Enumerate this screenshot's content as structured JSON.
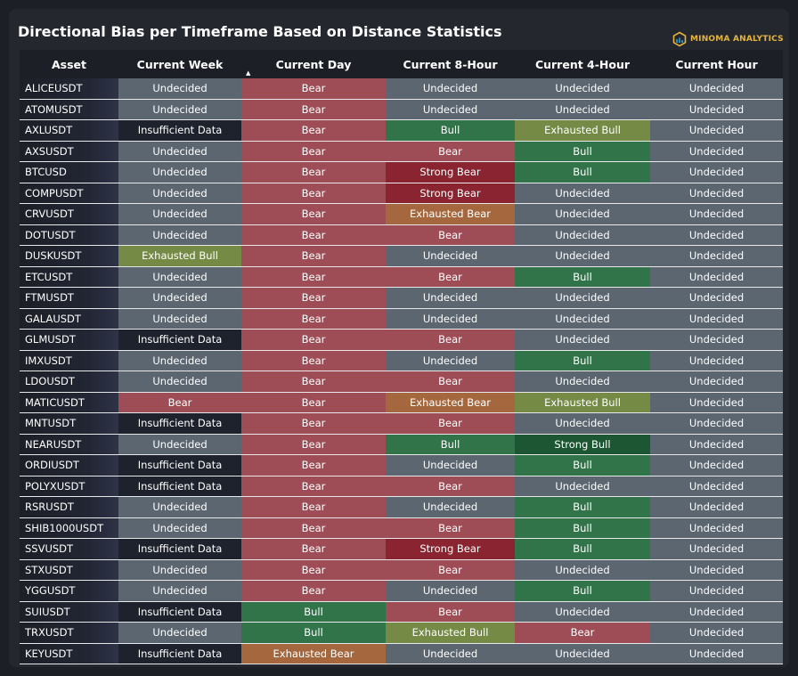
{
  "title": "Directional Bias per Timeframe Based on Distance Statistics",
  "brand": {
    "name": "MINOMA ANALYTICS",
    "icon": "cube-logo-icon",
    "color": "#e4b640"
  },
  "columns": [
    "Asset",
    "Current Week",
    "Current Day",
    "Current 8-Hour",
    "Current 4-Hour",
    "Current Hour"
  ],
  "sorted_column": "Current Day",
  "status_colors": {
    "Undecided": "#5b6670",
    "Insufficient Data": "#1e222c",
    "Bear": "#9e4c56",
    "Bull": "#31744a",
    "Strong Bear": "#8a2430",
    "Strong Bull": "#1d5632",
    "Exhausted Bull": "#748a45",
    "Exhausted Bear": "#a5683e"
  },
  "rows": [
    [
      "ALICEUSDT",
      "Undecided",
      "Bear",
      "Undecided",
      "Undecided",
      "Undecided"
    ],
    [
      "ATOMUSDT",
      "Undecided",
      "Bear",
      "Undecided",
      "Undecided",
      "Undecided"
    ],
    [
      "AXLUSDT",
      "Insufficient Data",
      "Bear",
      "Bull",
      "Exhausted Bull",
      "Undecided"
    ],
    [
      "AXSUSDT",
      "Undecided",
      "Bear",
      "Bear",
      "Bull",
      "Undecided"
    ],
    [
      "BTCUSD",
      "Undecided",
      "Bear",
      "Strong Bear",
      "Bull",
      "Undecided"
    ],
    [
      "COMPUSDT",
      "Undecided",
      "Bear",
      "Strong Bear",
      "Undecided",
      "Undecided"
    ],
    [
      "CRVUSDT",
      "Undecided",
      "Bear",
      "Exhausted Bear",
      "Undecided",
      "Undecided"
    ],
    [
      "DOTUSDT",
      "Undecided",
      "Bear",
      "Bear",
      "Undecided",
      "Undecided"
    ],
    [
      "DUSKUSDT",
      "Exhausted Bull",
      "Bear",
      "Undecided",
      "Undecided",
      "Undecided"
    ],
    [
      "ETCUSDT",
      "Undecided",
      "Bear",
      "Bear",
      "Bull",
      "Undecided"
    ],
    [
      "FTMUSDT",
      "Undecided",
      "Bear",
      "Undecided",
      "Undecided",
      "Undecided"
    ],
    [
      "GALAUSDT",
      "Undecided",
      "Bear",
      "Undecided",
      "Undecided",
      "Undecided"
    ],
    [
      "GLMUSDT",
      "Insufficient Data",
      "Bear",
      "Bear",
      "Undecided",
      "Undecided"
    ],
    [
      "IMXUSDT",
      "Undecided",
      "Bear",
      "Undecided",
      "Bull",
      "Undecided"
    ],
    [
      "LDOUSDT",
      "Undecided",
      "Bear",
      "Bear",
      "Undecided",
      "Undecided"
    ],
    [
      "MATICUSDT",
      "Bear",
      "Bear",
      "Exhausted Bear",
      "Exhausted Bull",
      "Undecided"
    ],
    [
      "MNTUSDT",
      "Insufficient Data",
      "Bear",
      "Bear",
      "Undecided",
      "Undecided"
    ],
    [
      "NEARUSDT",
      "Undecided",
      "Bear",
      "Bull",
      "Strong Bull",
      "Undecided"
    ],
    [
      "ORDIUSDT",
      "Insufficient Data",
      "Bear",
      "Undecided",
      "Bull",
      "Undecided"
    ],
    [
      "POLYXUSDT",
      "Insufficient Data",
      "Bear",
      "Bear",
      "Undecided",
      "Undecided"
    ],
    [
      "RSRUSDT",
      "Undecided",
      "Bear",
      "Undecided",
      "Bull",
      "Undecided"
    ],
    [
      "SHIB1000USDT",
      "Undecided",
      "Bear",
      "Bear",
      "Bull",
      "Undecided"
    ],
    [
      "SSVUSDT",
      "Insufficient Data",
      "Bear",
      "Strong Bear",
      "Bull",
      "Undecided"
    ],
    [
      "STXUSDT",
      "Undecided",
      "Bear",
      "Bear",
      "Undecided",
      "Undecided"
    ],
    [
      "YGGUSDT",
      "Undecided",
      "Bear",
      "Undecided",
      "Bull",
      "Undecided"
    ],
    [
      "SUIUSDT",
      "Insufficient Data",
      "Bull",
      "Bear",
      "Undecided",
      "Undecided"
    ],
    [
      "TRXUSDT",
      "Undecided",
      "Bull",
      "Exhausted Bull",
      "Bear",
      "Undecided"
    ],
    [
      "KEYUSDT",
      "Insufficient Data",
      "Exhausted Bear",
      "Undecided",
      "Undecided",
      "Undecided"
    ]
  ]
}
